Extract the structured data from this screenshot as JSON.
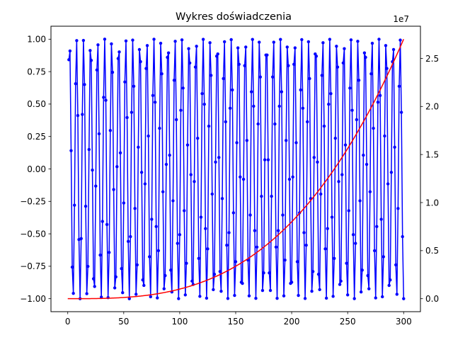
{
  "chart_data": {
    "type": "line",
    "title": "Wykres doświadczenia",
    "xlabel": "",
    "ylabel": "",
    "y2label": "",
    "xlim": [
      -15,
      315
    ],
    "ylim": [
      -1.1,
      1.1
    ],
    "y2lim": [
      -1350000,
      28350000
    ],
    "y2_offset_label": "1e7",
    "x_ticks": [
      0,
      50,
      100,
      150,
      200,
      250,
      300
    ],
    "x_tick_labels": [
      "0",
      "50",
      "100",
      "150",
      "200",
      "250",
      "300"
    ],
    "y_ticks": [
      -1.0,
      -0.75,
      -0.5,
      -0.25,
      0.0,
      0.25,
      0.5,
      0.75,
      1.0
    ],
    "y_tick_labels": [
      "−1.00",
      "−0.75",
      "−0.50",
      "−0.25",
      "0.00",
      "0.25",
      "0.50",
      "0.75",
      "1.00"
    ],
    "y2_ticks": [
      0,
      5000000,
      10000000,
      15000000,
      20000000,
      25000000
    ],
    "y2_tick_labels": [
      "0.0",
      "0.5",
      "1.0",
      "1.5",
      "2.0",
      "2.5"
    ],
    "grid": false,
    "legend": "none",
    "series": [
      {
        "axis": "left",
        "color": "#0000ff",
        "marker": "dot",
        "x_range": [
          1,
          300
        ],
        "x_step": 1,
        "formula": "y = sin(x)"
      },
      {
        "axis": "right",
        "color": "#ff0000",
        "marker": "none",
        "x_range": [
          0,
          300
        ],
        "x_step": 1,
        "formula": "y = x^3"
      }
    ]
  }
}
